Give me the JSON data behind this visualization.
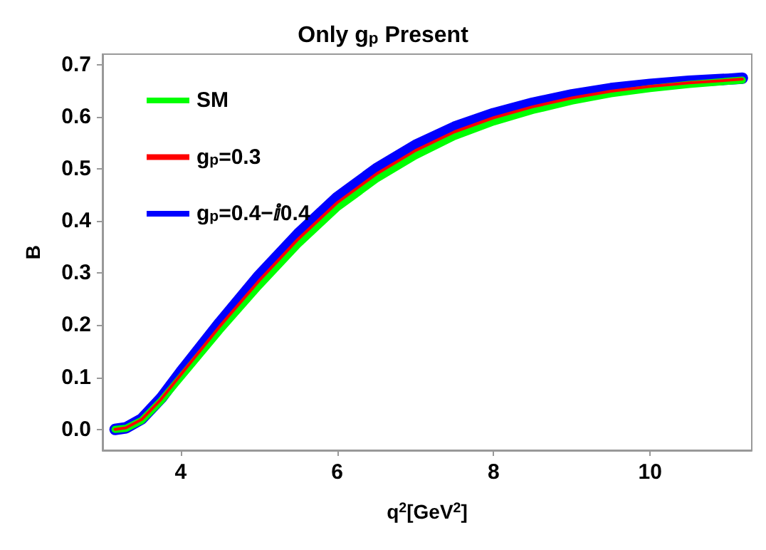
{
  "chart_data": {
    "type": "line",
    "title": "Only g$_{p}$ Present",
    "xlabel": "q$^{2}$[GeV$^{2}$]",
    "ylabel": "B",
    "x": [
      3.16,
      3.3,
      3.5,
      3.75,
      4,
      4.5,
      5,
      5.5,
      6,
      6.5,
      7,
      7.5,
      8,
      8.5,
      9,
      9.5,
      10,
      10.5,
      11,
      11.18
    ],
    "series": [
      {
        "name": "SM",
        "color": "#00ff00",
        "values": [
          0,
          0.002,
          0.017,
          0.055,
          0.1,
          0.19,
          0.275,
          0.355,
          0.425,
          0.48,
          0.525,
          0.562,
          0.59,
          0.612,
          0.63,
          0.644,
          0.654,
          0.662,
          0.668,
          0.67
        ]
      },
      {
        "name": "g$_{p}$=0.3",
        "color": "#ff0000",
        "values": [
          0,
          0.003,
          0.019,
          0.058,
          0.105,
          0.198,
          0.285,
          0.365,
          0.435,
          0.49,
          0.535,
          0.571,
          0.598,
          0.619,
          0.636,
          0.649,
          0.658,
          0.665,
          0.67,
          0.672
        ]
      },
      {
        "name": "g$_{p}$=0.4−ⅈ0.4",
        "color": "#0000ff",
        "values": [
          0,
          0.003,
          0.02,
          0.06,
          0.11,
          0.205,
          0.295,
          0.375,
          0.445,
          0.5,
          0.545,
          0.58,
          0.606,
          0.626,
          0.642,
          0.654,
          0.662,
          0.668,
          0.672,
          0.674
        ]
      }
    ],
    "xlim": [
      3,
      11.3
    ],
    "xticks": [
      4,
      6,
      8,
      10
    ],
    "ylim": [
      -0.04,
      0.72
    ],
    "yticks": [
      {
        "value": 0,
        "label": "0.0"
      },
      0.1,
      0.2,
      0.3,
      0.4,
      0.5,
      0.6,
      0.7
    ],
    "grid": false,
    "legend": "top left",
    "marker": "none",
    "line_style": "solid"
  }
}
